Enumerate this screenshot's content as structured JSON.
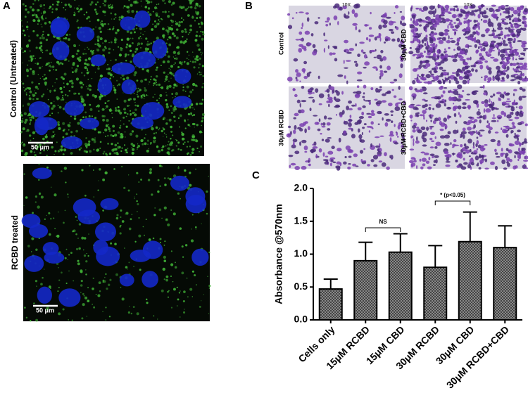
{
  "panel_labels": [
    "A",
    "B",
    "C"
  ],
  "fluorescence": {
    "labels": [
      "Control (Untreated)",
      "RCBD treated"
    ],
    "scale_bar": "50 μm"
  },
  "crystal_violet": {
    "magnification": "10X",
    "labels": [
      "Control",
      "30μM CBD",
      "30μM RCBD",
      "30μM RCBD+CBD"
    ]
  },
  "chart_data": {
    "type": "bar",
    "y_label": "Absorbance @570nm",
    "categories": [
      "Cells only",
      "15μM RCBD",
      "15μM CBD",
      "30μM RCBD",
      "30μM CBD",
      "30μM RCBD+CBD"
    ],
    "values": [
      0.47,
      0.9,
      1.03,
      0.8,
      1.19,
      1.1
    ],
    "errors": [
      0.15,
      0.28,
      0.28,
      0.33,
      0.45,
      0.33
    ],
    "color": "#8a8a8a",
    "ylim": [
      0,
      2
    ],
    "yticks": [
      {
        "value": 0,
        "label": "0.0"
      },
      {
        "value": 0.5,
        "label": "0.5"
      },
      {
        "value": 1,
        "label": "1.0"
      },
      {
        "value": 1.5,
        "label": "1.5"
      },
      {
        "value": 2,
        "label": "2.0"
      }
    ],
    "annotations": [
      "NS",
      "* (p<0.05)"
    ]
  }
}
